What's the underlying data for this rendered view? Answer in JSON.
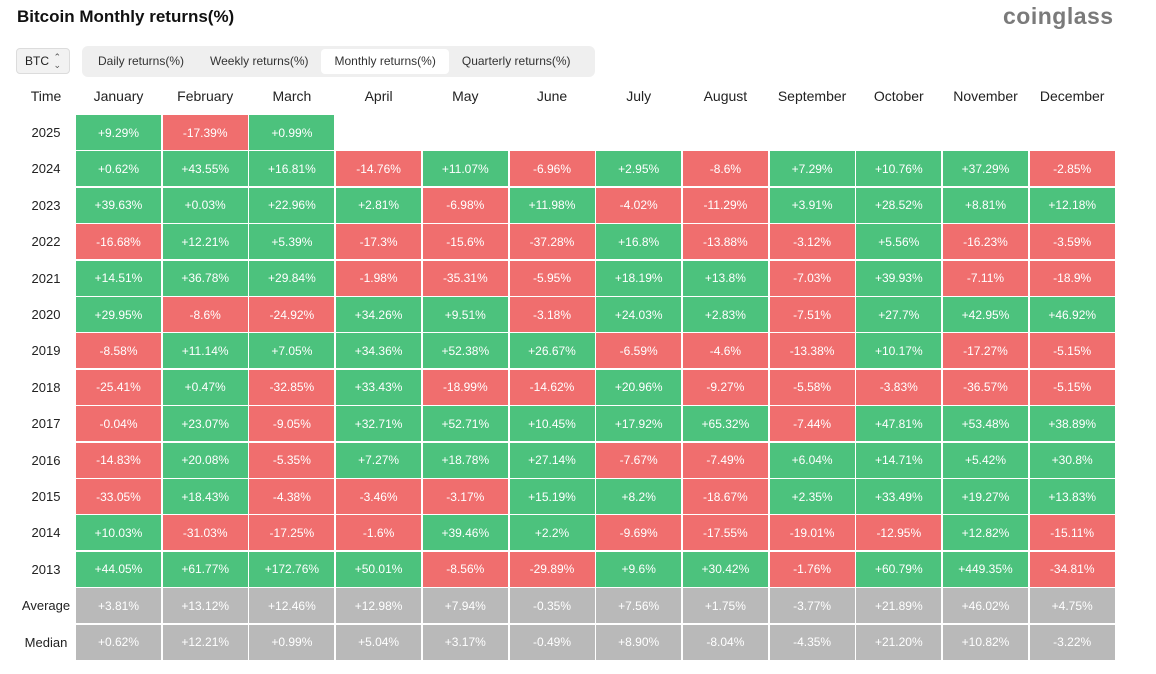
{
  "title": "Bitcoin Monthly returns(%)",
  "logo": "coinglass",
  "asset_select": {
    "value": "BTC"
  },
  "tabs": [
    {
      "label": "Daily returns(%)",
      "active": false
    },
    {
      "label": "Weekly returns(%)",
      "active": false
    },
    {
      "label": "Monthly returns(%)",
      "active": true
    },
    {
      "label": "Quarterly returns(%)",
      "active": false
    }
  ],
  "colors": {
    "positive": "#4cc27d",
    "negative": "#f06e6e",
    "summary": "#b9b9b9"
  },
  "chart_data": {
    "type": "heatmap",
    "title": "Bitcoin Monthly returns(%)",
    "row_header": "Time",
    "columns": [
      "January",
      "February",
      "March",
      "April",
      "May",
      "June",
      "July",
      "August",
      "September",
      "October",
      "November",
      "December"
    ],
    "rows": [
      {
        "label": "2025",
        "values": [
          "+9.29%",
          "-17.39%",
          "+0.99%",
          null,
          null,
          null,
          null,
          null,
          null,
          null,
          null,
          null
        ]
      },
      {
        "label": "2024",
        "values": [
          "+0.62%",
          "+43.55%",
          "+16.81%",
          "-14.76%",
          "+11.07%",
          "-6.96%",
          "+2.95%",
          "-8.6%",
          "+7.29%",
          "+10.76%",
          "+37.29%",
          "-2.85%"
        ]
      },
      {
        "label": "2023",
        "values": [
          "+39.63%",
          "+0.03%",
          "+22.96%",
          "+2.81%",
          "-6.98%",
          "+11.98%",
          "-4.02%",
          "-11.29%",
          "+3.91%",
          "+28.52%",
          "+8.81%",
          "+12.18%"
        ]
      },
      {
        "label": "2022",
        "values": [
          "-16.68%",
          "+12.21%",
          "+5.39%",
          "-17.3%",
          "-15.6%",
          "-37.28%",
          "+16.8%",
          "-13.88%",
          "-3.12%",
          "+5.56%",
          "-16.23%",
          "-3.59%"
        ]
      },
      {
        "label": "2021",
        "values": [
          "+14.51%",
          "+36.78%",
          "+29.84%",
          "-1.98%",
          "-35.31%",
          "-5.95%",
          "+18.19%",
          "+13.8%",
          "-7.03%",
          "+39.93%",
          "-7.11%",
          "-18.9%"
        ]
      },
      {
        "label": "2020",
        "values": [
          "+29.95%",
          "-8.6%",
          "-24.92%",
          "+34.26%",
          "+9.51%",
          "-3.18%",
          "+24.03%",
          "+2.83%",
          "-7.51%",
          "+27.7%",
          "+42.95%",
          "+46.92%"
        ]
      },
      {
        "label": "2019",
        "values": [
          "-8.58%",
          "+11.14%",
          "+7.05%",
          "+34.36%",
          "+52.38%",
          "+26.67%",
          "-6.59%",
          "-4.6%",
          "-13.38%",
          "+10.17%",
          "-17.27%",
          "-5.15%"
        ]
      },
      {
        "label": "2018",
        "values": [
          "-25.41%",
          "+0.47%",
          "-32.85%",
          "+33.43%",
          "-18.99%",
          "-14.62%",
          "+20.96%",
          "-9.27%",
          "-5.58%",
          "-3.83%",
          "-36.57%",
          "-5.15%"
        ]
      },
      {
        "label": "2017",
        "values": [
          "-0.04%",
          "+23.07%",
          "-9.05%",
          "+32.71%",
          "+52.71%",
          "+10.45%",
          "+17.92%",
          "+65.32%",
          "-7.44%",
          "+47.81%",
          "+53.48%",
          "+38.89%"
        ]
      },
      {
        "label": "2016",
        "values": [
          "-14.83%",
          "+20.08%",
          "-5.35%",
          "+7.27%",
          "+18.78%",
          "+27.14%",
          "-7.67%",
          "-7.49%",
          "+6.04%",
          "+14.71%",
          "+5.42%",
          "+30.8%"
        ]
      },
      {
        "label": "2015",
        "values": [
          "-33.05%",
          "+18.43%",
          "-4.38%",
          "-3.46%",
          "-3.17%",
          "+15.19%",
          "+8.2%",
          "-18.67%",
          "+2.35%",
          "+33.49%",
          "+19.27%",
          "+13.83%"
        ]
      },
      {
        "label": "2014",
        "values": [
          "+10.03%",
          "-31.03%",
          "-17.25%",
          "-1.6%",
          "+39.46%",
          "+2.2%",
          "-9.69%",
          "-17.55%",
          "-19.01%",
          "-12.95%",
          "+12.82%",
          "-15.11%"
        ]
      },
      {
        "label": "2013",
        "values": [
          "+44.05%",
          "+61.77%",
          "+172.76%",
          "+50.01%",
          "-8.56%",
          "-29.89%",
          "+9.6%",
          "+30.42%",
          "-1.76%",
          "+60.79%",
          "+449.35%",
          "-34.81%"
        ]
      }
    ],
    "summary_rows": [
      {
        "label": "Average",
        "values": [
          "+3.81%",
          "+13.12%",
          "+12.46%",
          "+12.98%",
          "+7.94%",
          "-0.35%",
          "+7.56%",
          "+1.75%",
          "-3.77%",
          "+21.89%",
          "+46.02%",
          "+4.75%"
        ]
      },
      {
        "label": "Median",
        "values": [
          "+0.62%",
          "+12.21%",
          "+0.99%",
          "+5.04%",
          "+3.17%",
          "-0.49%",
          "+8.90%",
          "-8.04%",
          "-4.35%",
          "+21.20%",
          "+10.82%",
          "-3.22%"
        ]
      }
    ]
  }
}
